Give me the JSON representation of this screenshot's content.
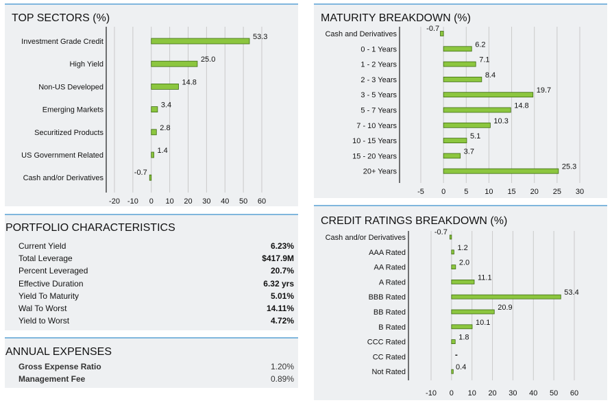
{
  "colors": {
    "bar_fill": "#8cc63f",
    "bar_stroke": "#3d6b12",
    "grid": "#c9c9c9",
    "axis": "#444444",
    "accent": "#7fb6dd"
  },
  "portfolio": {
    "title": "PORTFOLIO CHARACTERISTICS",
    "rows": [
      {
        "label": "Current Yield",
        "value": "6.23%"
      },
      {
        "label": "Total Leverage",
        "value": "$417.9M"
      },
      {
        "label": "Percent Leveraged",
        "value": "20.7%"
      },
      {
        "label": "Effective Duration",
        "value": "6.32 yrs"
      },
      {
        "label": "Yield To Maturity",
        "value": "5.01%"
      },
      {
        "label": "Wal To Worst",
        "value": "14.11%"
      },
      {
        "label": "Yield to Worst",
        "value": "4.72%"
      }
    ]
  },
  "expenses": {
    "title": "ANNUAL EXPENSES",
    "rows": [
      {
        "label": "Gross Expense Ratio",
        "value": "1.20%"
      },
      {
        "label": "Management Fee",
        "value": "0.89%"
      }
    ]
  },
  "chart_data": [
    {
      "id": "sectors",
      "type": "bar",
      "orientation": "horizontal",
      "title": "TOP SECTORS (%)",
      "categories": [
        "Investment Grade Credit",
        "High Yield",
        "Non-US Developed",
        "Emerging Markets",
        "Securitized Products",
        "US Government Related",
        "Cash and/or Derivatives"
      ],
      "values": [
        53.3,
        25.0,
        14.8,
        3.4,
        2.8,
        1.4,
        -0.7
      ],
      "labels": [
        "53.3",
        "25.0",
        "14.8",
        "3.4",
        "2.8",
        "1.4",
        "-0.7"
      ],
      "xlim": [
        -20,
        60
      ],
      "ticks": [
        -20,
        -10,
        0,
        10,
        20,
        30,
        40,
        50,
        60
      ],
      "tick_labels": [
        "-20",
        "-10",
        "0",
        "10",
        "20",
        "30",
        "40",
        "50",
        "60"
      ]
    },
    {
      "id": "maturity",
      "type": "bar",
      "orientation": "horizontal",
      "title": "MATURITY BREAKDOWN (%)",
      "categories": [
        "Cash and Derivatives",
        "0 - 1 Years",
        "1 - 2 Years",
        "2 - 3 Years",
        "3 - 5 Years",
        "5 - 7 Years",
        "7 - 10 Years",
        "10 - 15 Years",
        "15 - 20 Years",
        "20+ Years"
      ],
      "values": [
        -0.7,
        6.2,
        7.1,
        8.4,
        19.7,
        14.8,
        10.3,
        5.1,
        3.7,
        25.3
      ],
      "labels": [
        "-0.7",
        "6.2",
        "7.1",
        "8.4",
        "19.7",
        "14.8",
        "10.3",
        "5.1",
        "3.7",
        "25.3"
      ],
      "xlim": [
        -5,
        30
      ],
      "ticks": [
        -5,
        0,
        5,
        10,
        15,
        20,
        25,
        30
      ],
      "tick_labels": [
        "-5",
        "0",
        "5",
        "10",
        "15",
        "20",
        "25",
        "30"
      ]
    },
    {
      "id": "credit",
      "type": "bar",
      "orientation": "horizontal",
      "title": "CREDIT RATINGS BREAKDOWN (%)",
      "categories": [
        "Cash and/or Derivatives",
        "AAA Rated",
        "AA Rated",
        "A Rated",
        "BBB Rated",
        "BB Rated",
        "B Rated",
        "CCC Rated",
        "CC Rated",
        "Not Rated"
      ],
      "values": [
        -0.7,
        1.2,
        2.0,
        11.1,
        53.4,
        20.9,
        10.1,
        1.8,
        0,
        0.4
      ],
      "labels": [
        "-0.7",
        "1.2",
        "2.0",
        "11.1",
        "53.4",
        "20.9",
        "10.1",
        "1.8",
        "-",
        "0.4"
      ],
      "xlim": [
        -10,
        60
      ],
      "ticks": [
        -10,
        0,
        10,
        20,
        30,
        40,
        50,
        60
      ],
      "tick_labels": [
        "-10",
        "0",
        "10",
        "20",
        "30",
        "40",
        "50",
        "60"
      ]
    }
  ]
}
